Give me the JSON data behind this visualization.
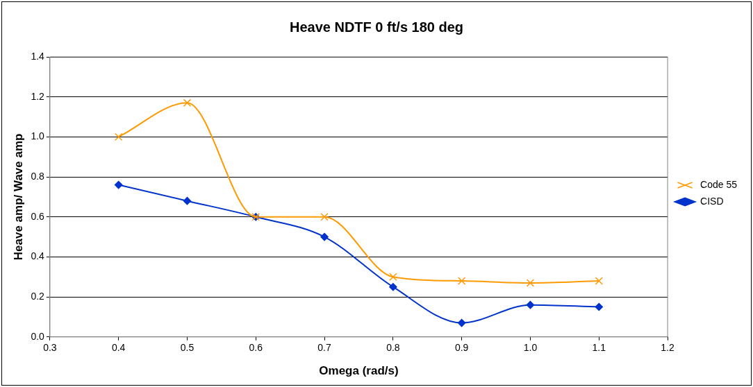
{
  "chart_data": {
    "type": "line",
    "title": "Heave NDTF 0 ft/s 180 deg",
    "xlabel": "Omega (rad/s)",
    "ylabel": "Heave amp/ Wave amp",
    "series": [
      {
        "name": "CISD",
        "color": "#0033cc",
        "marker": "diamond",
        "x": [
          0.4,
          0.5,
          0.6,
          0.7,
          0.8,
          0.9,
          1.0,
          1.1
        ],
        "values": [
          0.76,
          0.68,
          0.6,
          0.5,
          0.25,
          0.07,
          0.16,
          0.15
        ]
      },
      {
        "name": "Code 55",
        "color": "#ff9900",
        "marker": "cross",
        "x": [
          0.4,
          0.5,
          0.6,
          0.7,
          0.8,
          0.9,
          1.0,
          1.1
        ],
        "values": [
          1.0,
          1.17,
          0.6,
          0.6,
          0.3,
          0.28,
          0.27,
          0.28
        ]
      }
    ],
    "xlim": [
      0.3,
      1.2
    ],
    "xticks": [
      {
        "value": 0.3,
        "label": "0.3"
      },
      {
        "value": 0.4,
        "label": "0.4"
      },
      {
        "value": 0.5,
        "label": "0.5"
      },
      {
        "value": 0.6,
        "label": "0.6"
      },
      {
        "value": 0.7,
        "label": "0.7"
      },
      {
        "value": 0.8,
        "label": "0.8"
      },
      {
        "value": 0.9,
        "label": "0.9"
      },
      {
        "value": 1.0,
        "label": "1.0"
      },
      {
        "value": 1.1,
        "label": "1.1"
      },
      {
        "value": 1.2,
        "label": "1.2"
      }
    ],
    "ylim": [
      0,
      1.4
    ],
    "yticks": [
      {
        "value": 0,
        "label": "0.0"
      },
      {
        "value": 0.2,
        "label": "0.2"
      },
      {
        "value": 0.4,
        "label": "0.4"
      },
      {
        "value": 0.6,
        "label": "0.6"
      },
      {
        "value": 0.8,
        "label": "0.8"
      },
      {
        "value": 1.0,
        "label": "1.0"
      },
      {
        "value": 1.2,
        "label": "1.2"
      },
      {
        "value": 1.4,
        "label": "1.4"
      }
    ],
    "grid": "y",
    "legend": "right",
    "line_style": "solid"
  }
}
